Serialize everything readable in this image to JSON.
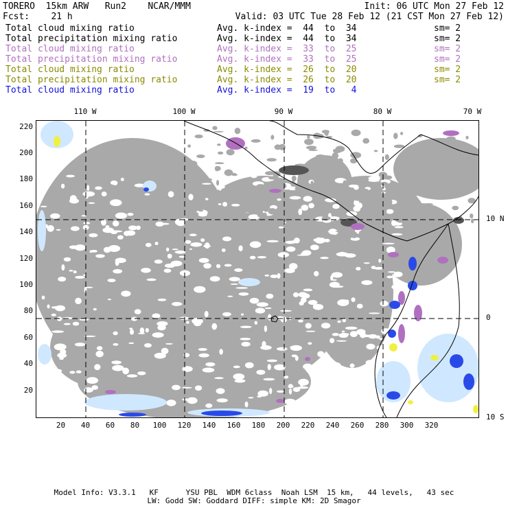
{
  "header": {
    "line1_left": "TORERO  15km ARW   Run2    NCAR/MMM",
    "line1_right": "Init: 06 UTC Mon 27 Feb 12",
    "line2_left": "Fcst:    21 h",
    "line2_right": "Valid: 03 UTC Tue 28 Feb 12 (21 CST Mon 27 Feb 12)"
  },
  "fields": [
    {
      "name": "Total cloud mixing ratio",
      "kindex": "Avg. k-index =  44  to  34",
      "sm": "sm= 2",
      "color": "#000000"
    },
    {
      "name": "Total precipitation mixing ratio",
      "kindex": "Avg. k-index =  44  to  34",
      "sm": "sm= 2",
      "color": "#000000"
    },
    {
      "name": "Total cloud mixing ratio",
      "kindex": "Avg. k-index =  33  to  25",
      "sm": "sm= 2",
      "color": "#b070c0"
    },
    {
      "name": "Total precipitation mixing ratio",
      "kindex": "Avg. k-index =  33  to  25",
      "sm": "sm= 2",
      "color": "#b070c0"
    },
    {
      "name": "Total cloud mixing ratio",
      "kindex": "Avg. k-index =  26  to  20",
      "sm": "sm= 2",
      "color": "#8a8a00"
    },
    {
      "name": "Total precipitation mixing ratio",
      "kindex": "Avg. k-index =  26  to  20",
      "sm": "sm= 2",
      "color": "#8a8a00"
    },
    {
      "name": "Total cloud mixing ratio",
      "kindex": "Avg. k-index =  19  to   4",
      "sm": "",
      "color": "#1010e0"
    }
  ],
  "map": {
    "lon_labels": [
      "110 W",
      "100 W",
      "90 W",
      "80 W",
      "70 W"
    ],
    "lat_labels": [
      "10 N",
      "0",
      "10 S"
    ],
    "x_ticks": [
      "20",
      "40",
      "60",
      "80",
      "100",
      "120",
      "140",
      "160",
      "180",
      "200",
      "220",
      "240",
      "260",
      "280",
      "300",
      "320"
    ],
    "y_ticks": [
      "220",
      "200",
      "180",
      "160",
      "140",
      "120",
      "100",
      "80",
      "60",
      "40",
      "20"
    ],
    "colors": {
      "cloud_gray": "#a9a9a9",
      "dark_gray": "#555555",
      "purple": "#b070c0",
      "light_blue": "#cfe8ff",
      "blue": "#2a4ae8",
      "yellow": "#f0f040"
    }
  },
  "footer": {
    "line1": "Model Info: V3.3.1   KF      YSU PBL  WDM 6class  Noah LSM  15 km,   44 levels,   43 sec",
    "line2": "LW: Godd SW: Goddard DIFF: simple KM: 2D Smagor"
  }
}
